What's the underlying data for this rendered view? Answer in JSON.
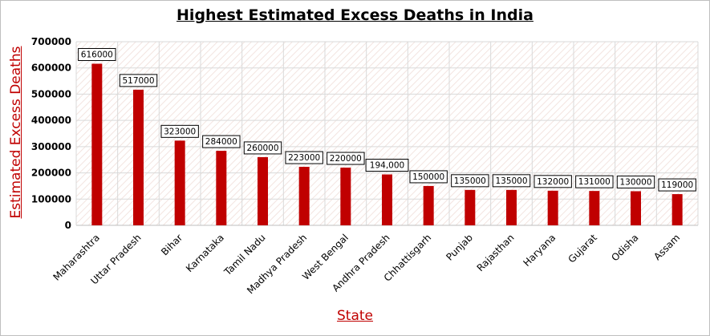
{
  "chart_data": {
    "type": "bar",
    "title": "Highest Estimated Excess Deaths in India",
    "xlabel": "State",
    "ylabel": "Estimated Excess Deaths",
    "categories": [
      "Maharashtra",
      "Uttar Pradesh",
      "Bihar",
      "Karnataka",
      "Tamil Nadu",
      "Madhya Pradesh",
      "West Bengal",
      "Andhra Pradesh",
      "Chhattisgarh",
      "Punjab",
      "Rajasthan",
      "Haryana",
      "Gujarat",
      "Odisha",
      "Assam"
    ],
    "values": [
      616000,
      517000,
      323000,
      284000,
      260000,
      223000,
      220000,
      194000,
      150000,
      135000,
      135000,
      132000,
      131000,
      130000,
      119000
    ],
    "data_labels": [
      "616000",
      "517000",
      "323000",
      "284000",
      "260000",
      "223000",
      "220000",
      "194,000",
      "150000",
      "135000",
      "135000",
      "132000",
      "131000",
      "130000",
      "119000"
    ],
    "ylim": [
      0,
      700000
    ],
    "yticks": [
      0,
      100000,
      200000,
      300000,
      400000,
      500000,
      600000,
      700000
    ],
    "grid": true,
    "legend": "none",
    "colors": {
      "bar": "#c00000",
      "axis_title": "#c00000",
      "grid": "#d9d9d9",
      "plot_pattern": "#f3e4e0"
    }
  }
}
